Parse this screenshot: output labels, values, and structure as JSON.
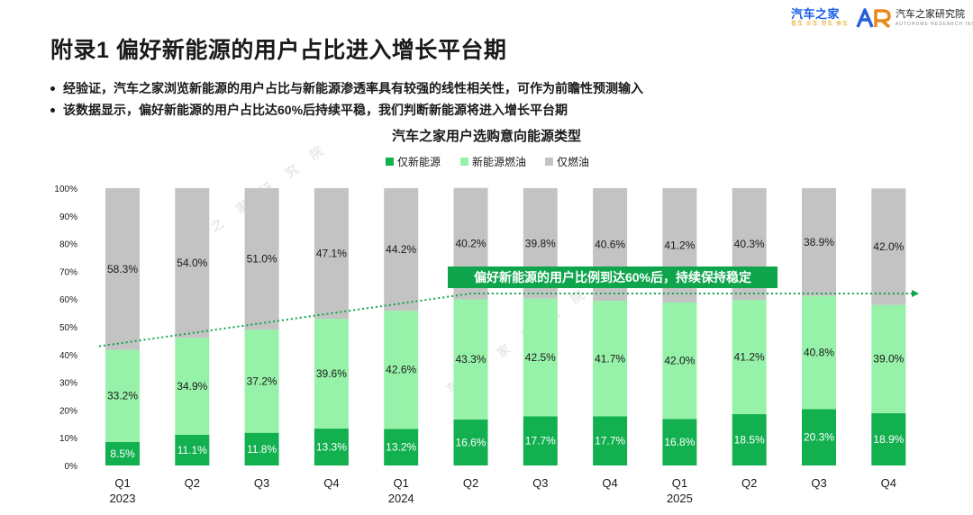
{
  "page": {
    "title": "附录1 偏好新能源的用户占比进入增长平台期",
    "bullets": [
      "经验证，汽车之家浏览新能源的用户占比与新能源渗透率具有较强的线性相关性，可作为前瞻性预测输入",
      "该数据显示，偏好新能源的用户占比达60%后持续平稳，我们判断新能源将进入增长平台期"
    ]
  },
  "logos": {
    "autohome_name": "汽车之家",
    "autohome_slogan": "看车 买车 用车 换车",
    "institute_name": "汽车之家研究院",
    "institute_en": "AUTOHOME RESEARCH INSTITUTE"
  },
  "colors": {
    "nev_only": "#13b050",
    "nev_fuel": "#97f2a9",
    "fuel_only": "#c3c3c3",
    "callout": "#0fa54c",
    "text": "#1a1a1a"
  },
  "chart_data": {
    "type": "bar",
    "stacked": true,
    "title": "汽车之家用户选购意向能源类型",
    "categories": [
      "Q1",
      "Q2",
      "Q3",
      "Q4",
      "Q1",
      "Q2",
      "Q3",
      "Q4",
      "Q1",
      "Q2",
      "Q3",
      "Q4"
    ],
    "years": [
      "2023",
      "",
      "",
      "",
      "2024",
      "",
      "",
      "",
      "2025",
      "",
      "",
      ""
    ],
    "series": [
      {
        "name": "仅新能源",
        "values": [
          8.5,
          11.1,
          11.8,
          13.3,
          13.2,
          16.6,
          17.7,
          17.7,
          16.8,
          18.5,
          20.3,
          18.9
        ]
      },
      {
        "name": "新能源燃油",
        "values": [
          33.2,
          34.9,
          37.2,
          39.6,
          42.6,
          43.3,
          42.5,
          41.7,
          42.0,
          41.2,
          40.8,
          39.0
        ]
      },
      {
        "name": "仅燃油",
        "values": [
          58.3,
          54.0,
          51.0,
          47.1,
          44.2,
          40.2,
          39.8,
          40.6,
          41.2,
          40.3,
          38.9,
          42.0
        ]
      }
    ],
    "yticks": [
      "0%",
      "10%",
      "20%",
      "30%",
      "40%",
      "50%",
      "60%",
      "70%",
      "80%",
      "90%",
      "100%"
    ],
    "ylim": [
      0,
      100
    ],
    "legend_position": "top-center",
    "annotation": "偏好新能源的用户比例到达60%后，持续保持稳定",
    "trend": {
      "start_category": 0,
      "start_value": 43,
      "plateau_category": 5,
      "plateau_value": 62
    }
  },
  "watermark": {
    "chars": [
      "车",
      "之",
      "家",
      "研",
      "究",
      "院"
    ]
  }
}
